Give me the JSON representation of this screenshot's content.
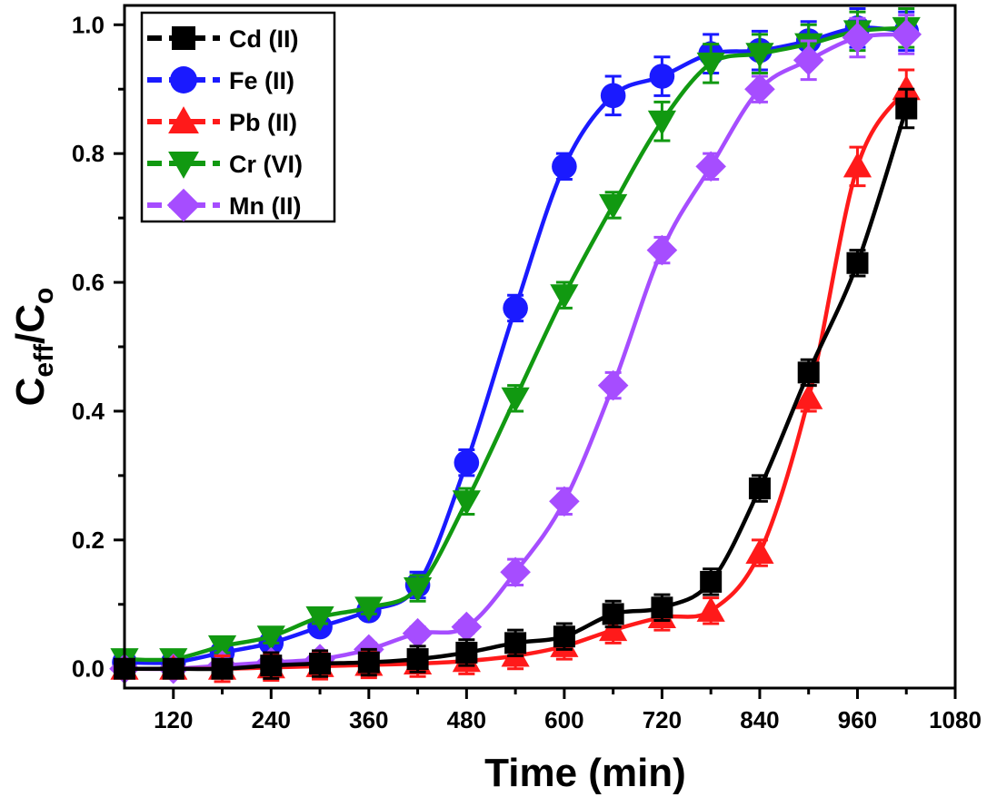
{
  "chart_data": {
    "type": "line",
    "xlabel": "Time (min)",
    "ylabel": {
      "main": "C",
      "sub1": "eff",
      "slash": "/C",
      "sub2": "o"
    },
    "xlim": [
      60,
      1080
    ],
    "ylim": [
      -0.03,
      1.03
    ],
    "xticks": [
      120,
      240,
      360,
      480,
      600,
      720,
      840,
      960,
      1080
    ],
    "xtick_labels": [
      "120",
      "240",
      "360",
      "480",
      "600",
      "720",
      "840",
      "960",
      "1080"
    ],
    "yticks": [
      0.0,
      0.2,
      0.4,
      0.6,
      0.8,
      1.0
    ],
    "ytick_labels": [
      "0.0",
      "0.2",
      "0.4",
      "0.6",
      "0.8",
      "1.0"
    ],
    "legend_position": "top-left",
    "series": [
      {
        "name": "Cd (II)",
        "color": "#000000",
        "marker": "square",
        "x": [
          60,
          120,
          180,
          240,
          300,
          360,
          420,
          480,
          540,
          600,
          660,
          720,
          780,
          840,
          900,
          960,
          1020
        ],
        "y": [
          0.0,
          0.0,
          0.0,
          0.005,
          0.008,
          0.01,
          0.015,
          0.025,
          0.04,
          0.05,
          0.085,
          0.095,
          0.135,
          0.28,
          0.46,
          0.63,
          0.87
        ],
        "err": [
          0.01,
          0.01,
          0.01,
          0.02,
          0.02,
          0.02,
          0.02,
          0.02,
          0.02,
          0.02,
          0.02,
          0.02,
          0.02,
          0.02,
          0.02,
          0.02,
          0.03
        ]
      },
      {
        "name": "Fe (II)",
        "color": "#1a1aff",
        "marker": "circle",
        "x": [
          60,
          120,
          180,
          240,
          300,
          360,
          420,
          480,
          540,
          600,
          660,
          720,
          780,
          840,
          900,
          960,
          1020
        ],
        "y": [
          0.01,
          0.01,
          0.025,
          0.04,
          0.065,
          0.09,
          0.13,
          0.32,
          0.56,
          0.78,
          0.89,
          0.92,
          0.955,
          0.96,
          0.975,
          0.995,
          0.99
        ],
        "err": [
          0.01,
          0.01,
          0.01,
          0.01,
          0.01,
          0.01,
          0.02,
          0.02,
          0.02,
          0.02,
          0.03,
          0.03,
          0.03,
          0.03,
          0.03,
          0.03,
          0.03
        ]
      },
      {
        "name": "Pb (II)",
        "color": "#ff1a1a",
        "marker": "triangle-up",
        "x": [
          60,
          120,
          180,
          240,
          300,
          360,
          420,
          480,
          540,
          600,
          660,
          720,
          780,
          840,
          900,
          960,
          1020
        ],
        "y": [
          0.0,
          0.0,
          0.0,
          0.002,
          0.004,
          0.006,
          0.008,
          0.012,
          0.02,
          0.035,
          0.06,
          0.08,
          0.09,
          0.18,
          0.42,
          0.78,
          0.9
        ],
        "err": [
          0.01,
          0.01,
          0.02,
          0.02,
          0.02,
          0.02,
          0.02,
          0.02,
          0.02,
          0.02,
          0.02,
          0.02,
          0.02,
          0.02,
          0.02,
          0.03,
          0.03
        ]
      },
      {
        "name": "Cr (VI)",
        "color": "#119911",
        "marker": "triangle-down",
        "x": [
          60,
          120,
          180,
          240,
          300,
          360,
          420,
          480,
          540,
          600,
          660,
          720,
          780,
          840,
          900,
          960,
          1020
        ],
        "y": [
          0.015,
          0.015,
          0.035,
          0.05,
          0.08,
          0.095,
          0.125,
          0.26,
          0.42,
          0.58,
          0.72,
          0.85,
          0.94,
          0.955,
          0.97,
          0.99,
          0.995
        ],
        "err": [
          0.01,
          0.01,
          0.01,
          0.01,
          0.01,
          0.01,
          0.02,
          0.02,
          0.02,
          0.02,
          0.02,
          0.03,
          0.03,
          0.03,
          0.03,
          0.03,
          0.03
        ]
      },
      {
        "name": "Mn (II)",
        "color": "#a64dff",
        "marker": "diamond",
        "x": [
          60,
          120,
          180,
          240,
          300,
          360,
          420,
          480,
          540,
          600,
          660,
          720,
          780,
          840,
          900,
          960,
          1020
        ],
        "y": [
          0.0,
          0.0,
          0.005,
          0.01,
          0.015,
          0.03,
          0.055,
          0.065,
          0.15,
          0.26,
          0.44,
          0.65,
          0.78,
          0.9,
          0.945,
          0.98,
          0.985
        ],
        "err": [
          0.01,
          0.01,
          0.01,
          0.01,
          0.01,
          0.01,
          0.01,
          0.01,
          0.02,
          0.02,
          0.02,
          0.02,
          0.02,
          0.02,
          0.03,
          0.03,
          0.03
        ]
      }
    ]
  }
}
